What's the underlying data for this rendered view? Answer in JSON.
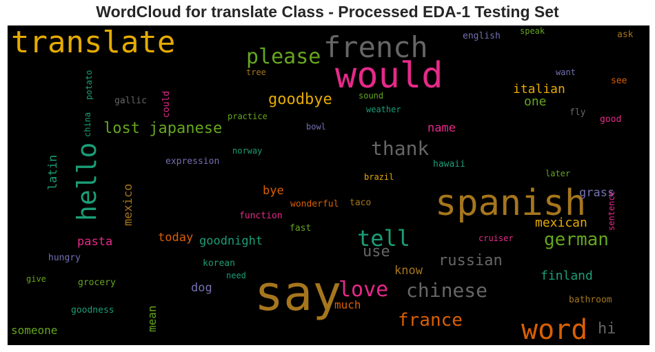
{
  "chart_data": {
    "type": "wordcloud",
    "title": "WordCloud for translate Class - Processed EDA-1 Testing Set",
    "background": "#000000",
    "words": [
      {
        "text": "say",
        "weight": 1.0,
        "color": "#a6761d"
      },
      {
        "text": "would",
        "weight": 0.85,
        "color": "#e7298a"
      },
      {
        "text": "spanish",
        "weight": 0.8,
        "color": "#a6761d"
      },
      {
        "text": "translate",
        "weight": 0.75,
        "color": "#e6ab02"
      },
      {
        "text": "french",
        "weight": 0.7,
        "color": "#666666"
      },
      {
        "text": "hello",
        "weight": 0.7,
        "color": "#1b9e77"
      },
      {
        "text": "word",
        "weight": 0.65,
        "color": "#d95f02"
      },
      {
        "text": "tell",
        "weight": 0.5,
        "color": "#1b9e77"
      },
      {
        "text": "please",
        "weight": 0.5,
        "color": "#66a61e"
      },
      {
        "text": "love",
        "weight": 0.48,
        "color": "#e7298a"
      },
      {
        "text": "thank",
        "weight": 0.45,
        "color": "#666666"
      },
      {
        "text": "chinese",
        "weight": 0.45,
        "color": "#666666"
      },
      {
        "text": "german",
        "weight": 0.42,
        "color": "#66a61e"
      },
      {
        "text": "france",
        "weight": 0.42,
        "color": "#d95f02"
      },
      {
        "text": "lost japanese",
        "weight": 0.35,
        "color": "#66a61e"
      },
      {
        "text": "goodbye",
        "weight": 0.35,
        "color": "#e6ab02"
      },
      {
        "text": "russian",
        "weight": 0.35,
        "color": "#666666"
      },
      {
        "text": "use",
        "weight": 0.33,
        "color": "#666666"
      },
      {
        "text": "hi",
        "weight": 0.33,
        "color": "#666666"
      },
      {
        "text": "italian",
        "weight": 0.28,
        "color": "#e6ab02"
      },
      {
        "text": "one",
        "weight": 0.28,
        "color": "#66a61e"
      },
      {
        "text": "mexican",
        "weight": 0.27,
        "color": "#e6ab02"
      },
      {
        "text": "finland",
        "weight": 0.27,
        "color": "#1b9e77"
      },
      {
        "text": "latin",
        "weight": 0.27,
        "color": "#1b9e77"
      },
      {
        "text": "mexico",
        "weight": 0.27,
        "color": "#a6761d"
      },
      {
        "text": "name",
        "weight": 0.27,
        "color": "#e7298a"
      },
      {
        "text": "grass",
        "weight": 0.27,
        "color": "#7570b3"
      },
      {
        "text": "pasta",
        "weight": 0.26,
        "color": "#e7298a"
      },
      {
        "text": "today",
        "weight": 0.26,
        "color": "#d95f02"
      },
      {
        "text": "goodnight",
        "weight": 0.26,
        "color": "#1b9e77"
      },
      {
        "text": "bye",
        "weight": 0.26,
        "color": "#d95f02"
      },
      {
        "text": "know",
        "weight": 0.26,
        "color": "#a6761d"
      },
      {
        "text": "dog",
        "weight": 0.26,
        "color": "#7570b3"
      },
      {
        "text": "much",
        "weight": 0.25,
        "color": "#d95f02"
      },
      {
        "text": "mean",
        "weight": 0.25,
        "color": "#66a61e"
      },
      {
        "text": "someone",
        "weight": 0.25,
        "color": "#66a61e"
      },
      {
        "text": "sentence",
        "weight": 0.18,
        "color": "#e7298a"
      },
      {
        "text": "english",
        "weight": 0.18,
        "color": "#7570b3"
      },
      {
        "text": "speak",
        "weight": 0.18,
        "color": "#66a61e"
      },
      {
        "text": "ask",
        "weight": 0.18,
        "color": "#a6761d"
      },
      {
        "text": "potato",
        "weight": 0.18,
        "color": "#1b9e77"
      },
      {
        "text": "tree",
        "weight": 0.18,
        "color": "#a6761d"
      },
      {
        "text": "want",
        "weight": 0.18,
        "color": "#7570b3"
      },
      {
        "text": "see",
        "weight": 0.18,
        "color": "#d95f02"
      },
      {
        "text": "could",
        "weight": 0.18,
        "color": "#e7298a"
      },
      {
        "text": "gallic",
        "weight": 0.18,
        "color": "#666666"
      },
      {
        "text": "sound",
        "weight": 0.18,
        "color": "#66a61e"
      },
      {
        "text": "china",
        "weight": 0.18,
        "color": "#1b9e77"
      },
      {
        "text": "weather",
        "weight": 0.18,
        "color": "#1b9e77"
      },
      {
        "text": "fly",
        "weight": 0.18,
        "color": "#666666"
      },
      {
        "text": "good",
        "weight": 0.18,
        "color": "#e7298a"
      },
      {
        "text": "practice",
        "weight": 0.18,
        "color": "#66a61e"
      },
      {
        "text": "bowl",
        "weight": 0.18,
        "color": "#7570b3"
      },
      {
        "text": "norway",
        "weight": 0.18,
        "color": "#1b9e77"
      },
      {
        "text": "expression",
        "weight": 0.18,
        "color": "#7570b3"
      },
      {
        "text": "hawaii",
        "weight": 0.18,
        "color": "#1b9e77"
      },
      {
        "text": "later",
        "weight": 0.18,
        "color": "#66a61e"
      },
      {
        "text": "brazil",
        "weight": 0.18,
        "color": "#e6ab02"
      },
      {
        "text": "wonderful",
        "weight": 0.18,
        "color": "#d95f02"
      },
      {
        "text": "taco",
        "weight": 0.18,
        "color": "#a6761d"
      },
      {
        "text": "function",
        "weight": 0.18,
        "color": "#e7298a"
      },
      {
        "text": "fast",
        "weight": 0.18,
        "color": "#66a61e"
      },
      {
        "text": "cruiser",
        "weight": 0.18,
        "color": "#e7298a"
      },
      {
        "text": "hungry",
        "weight": 0.18,
        "color": "#7570b3"
      },
      {
        "text": "korean",
        "weight": 0.18,
        "color": "#1b9e77"
      },
      {
        "text": "give",
        "weight": 0.18,
        "color": "#66a61e"
      },
      {
        "text": "grocery",
        "weight": 0.18,
        "color": "#66a61e"
      },
      {
        "text": "need",
        "weight": 0.18,
        "color": "#1b9e77"
      },
      {
        "text": "goodness",
        "weight": 0.18,
        "color": "#1b9e77"
      },
      {
        "text": "bathroom",
        "weight": 0.18,
        "color": "#a6761d"
      }
    ]
  }
}
